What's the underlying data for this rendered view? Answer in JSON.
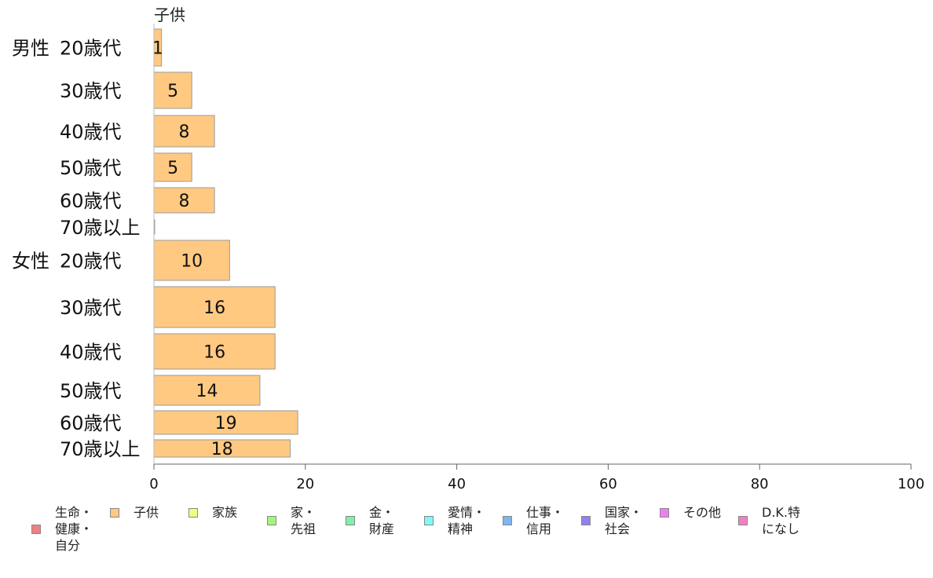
{
  "chart_data": {
    "type": "bar",
    "orientation": "horizontal",
    "series_title": "子供",
    "groups": [
      {
        "label": "男性",
        "categories": [
          "20歳代",
          "30歳代",
          "40歳代",
          "50歳代",
          "60歳代",
          "70歳以上"
        ],
        "values": [
          1,
          5,
          8,
          5,
          8,
          0
        ]
      },
      {
        "label": "女性",
        "categories": [
          "20歳代",
          "30歳代",
          "40歳代",
          "50歳代",
          "60歳代",
          "70歳以上"
        ],
        "values": [
          10,
          16,
          16,
          14,
          19,
          18
        ]
      }
    ],
    "data_labels": [
      [
        "1",
        "5",
        "8",
        "5",
        "8",
        ""
      ],
      [
        "10",
        "16",
        "16",
        "14",
        "19",
        "18"
      ]
    ],
    "xlim": [
      0,
      100
    ],
    "xticks": [
      0,
      20,
      40,
      60,
      80,
      100
    ],
    "xtick_labels": [
      "0",
      "20",
      "40",
      "60",
      "80",
      "100"
    ],
    "bar_color": "#ffc982",
    "bar_edge_color": "#9a9a9a",
    "grid": false,
    "legend_position": "bottom",
    "legend": [
      {
        "label": "生命・\n健康・\n自分",
        "color": "#f08080"
      },
      {
        "label": "子供",
        "color": "#ffc982"
      },
      {
        "label": "家族",
        "color": "#eeff80"
      },
      {
        "label": "家・\n先祖",
        "color": "#a4f57f"
      },
      {
        "label": "金・\n財産",
        "color": "#80f0a8"
      },
      {
        "label": "愛情・\n精神",
        "color": "#80f8f8"
      },
      {
        "label": "仕事・\n信用",
        "color": "#80b4f0"
      },
      {
        "label": "国家・\n社会",
        "color": "#9080f0"
      },
      {
        "label": "その他",
        "color": "#ee80ee"
      },
      {
        "label": "D.K.特\nになし",
        "color": "#f080c0"
      }
    ]
  }
}
